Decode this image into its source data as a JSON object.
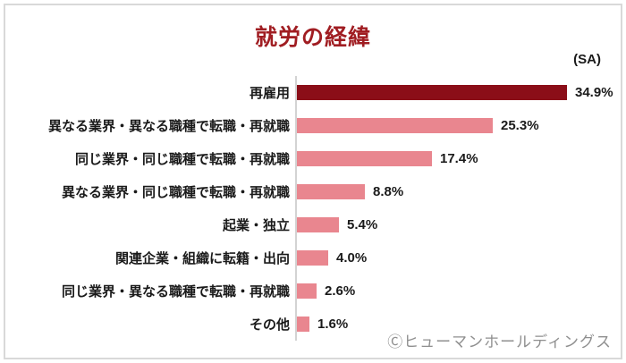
{
  "title": "就労の経緯",
  "note": "(SA)",
  "footer": {
    "credit": "Ⓒヒューマンホールディングス"
  },
  "colors": {
    "title": "#a01d22",
    "bar-highlight": "#8b0e18",
    "bar-normal": "#e9868f",
    "axis": "#d3d3d3",
    "frame": "#d9d9d9",
    "watermark": "#8f8f8f",
    "text": "#1a1a1a"
  },
  "chart_data": {
    "type": "bar",
    "orientation": "horizontal",
    "title": "就労の経緯",
    "annotation": "(SA)",
    "categories": [
      "再雇用",
      "異なる業界・異なる職種で転職・再就職",
      "同じ業界・同じ職種で転職・再就職",
      "異なる業界・同じ職種で転職・再就職",
      "起業・独立",
      "関連企業・組織に転籍・出向",
      "同じ業界・異なる職種で転職・再就職",
      "その他"
    ],
    "values": [
      34.9,
      25.3,
      17.4,
      8.8,
      5.4,
      4.0,
      2.6,
      1.6
    ],
    "value_labels": [
      "34.9%",
      "25.3%",
      "17.4%",
      "8.8%",
      "5.4%",
      "4.0%",
      "2.6%",
      "1.6%"
    ],
    "highlight_index": 0,
    "xlabel": "",
    "ylabel": "",
    "xlim": [
      0,
      40
    ],
    "grid": false,
    "legend": false,
    "data_labels": true
  }
}
